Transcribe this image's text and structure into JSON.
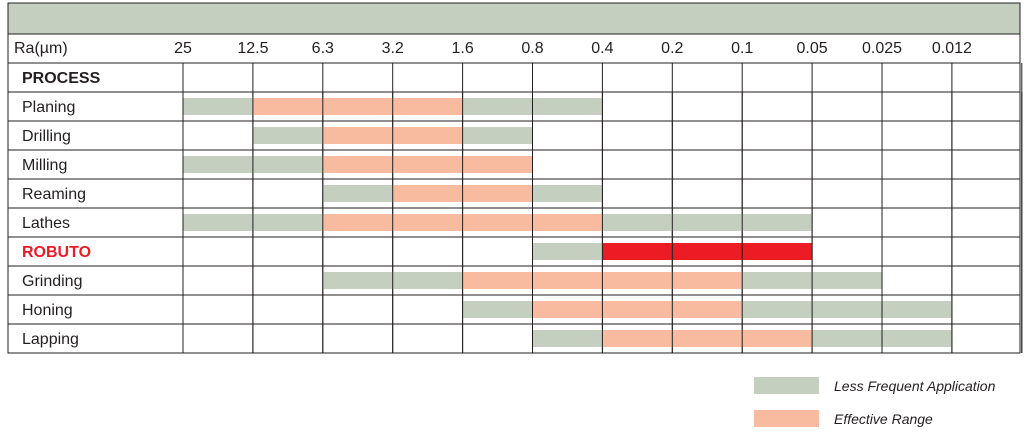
{
  "chart_data": {
    "type": "table",
    "header_label": "Ra(µm)",
    "columns": [
      "25",
      "12.5",
      "6.3",
      "3.2",
      "1.6",
      "0.8",
      "0.4",
      "0.2",
      "0.1",
      "0.05",
      "0.025",
      "0.012"
    ],
    "section_label": "PROCESS",
    "rows": [
      {
        "name": "Planing",
        "segments": [
          {
            "from": 0,
            "to": 1,
            "kind": "less"
          },
          {
            "from": 1,
            "to": 4,
            "kind": "effective"
          },
          {
            "from": 4,
            "to": 6,
            "kind": "less"
          }
        ]
      },
      {
        "name": "Drilling",
        "segments": [
          {
            "from": 1,
            "to": 2,
            "kind": "less"
          },
          {
            "from": 2,
            "to": 4,
            "kind": "effective"
          },
          {
            "from": 4,
            "to": 5,
            "kind": "less"
          }
        ]
      },
      {
        "name": "Milling",
        "segments": [
          {
            "from": 0,
            "to": 2,
            "kind": "less"
          },
          {
            "from": 2,
            "to": 5,
            "kind": "effective"
          }
        ]
      },
      {
        "name": "Reaming",
        "segments": [
          {
            "from": 2,
            "to": 3,
            "kind": "less"
          },
          {
            "from": 3,
            "to": 5,
            "kind": "effective"
          },
          {
            "from": 5,
            "to": 6,
            "kind": "less"
          }
        ]
      },
      {
        "name": "Lathes",
        "segments": [
          {
            "from": 0,
            "to": 2,
            "kind": "less"
          },
          {
            "from": 2,
            "to": 6,
            "kind": "effective"
          },
          {
            "from": 6,
            "to": 9,
            "kind": "less"
          }
        ]
      },
      {
        "name": "ROBUTO",
        "highlight": true,
        "segments": [
          {
            "from": 5,
            "to": 6,
            "kind": "less"
          },
          {
            "from": 6,
            "to": 9,
            "kind": "robuto"
          }
        ]
      },
      {
        "name": "Grinding",
        "segments": [
          {
            "from": 2,
            "to": 4,
            "kind": "less"
          },
          {
            "from": 4,
            "to": 8,
            "kind": "effective"
          },
          {
            "from": 8,
            "to": 10,
            "kind": "less"
          }
        ]
      },
      {
        "name": "Honing",
        "segments": [
          {
            "from": 4,
            "to": 5,
            "kind": "less"
          },
          {
            "from": 5,
            "to": 8,
            "kind": "effective"
          },
          {
            "from": 8,
            "to": 11,
            "kind": "less"
          }
        ]
      },
      {
        "name": "Lapping",
        "segments": [
          {
            "from": 5,
            "to": 6,
            "kind": "less"
          },
          {
            "from": 6,
            "to": 9,
            "kind": "effective"
          },
          {
            "from": 9,
            "to": 11,
            "kind": "less"
          }
        ]
      }
    ],
    "legend": [
      {
        "label": "Less Frequent Application",
        "kind": "less"
      },
      {
        "label": "Effective Range",
        "kind": "effective"
      }
    ],
    "colors": {
      "less": "#c4cfbf",
      "effective": "#f9bba0",
      "robuto": "#ec1c24",
      "robuto_text": "#ec1c24",
      "header_band": "#c4cfbf",
      "grid": "#231f20"
    }
  }
}
